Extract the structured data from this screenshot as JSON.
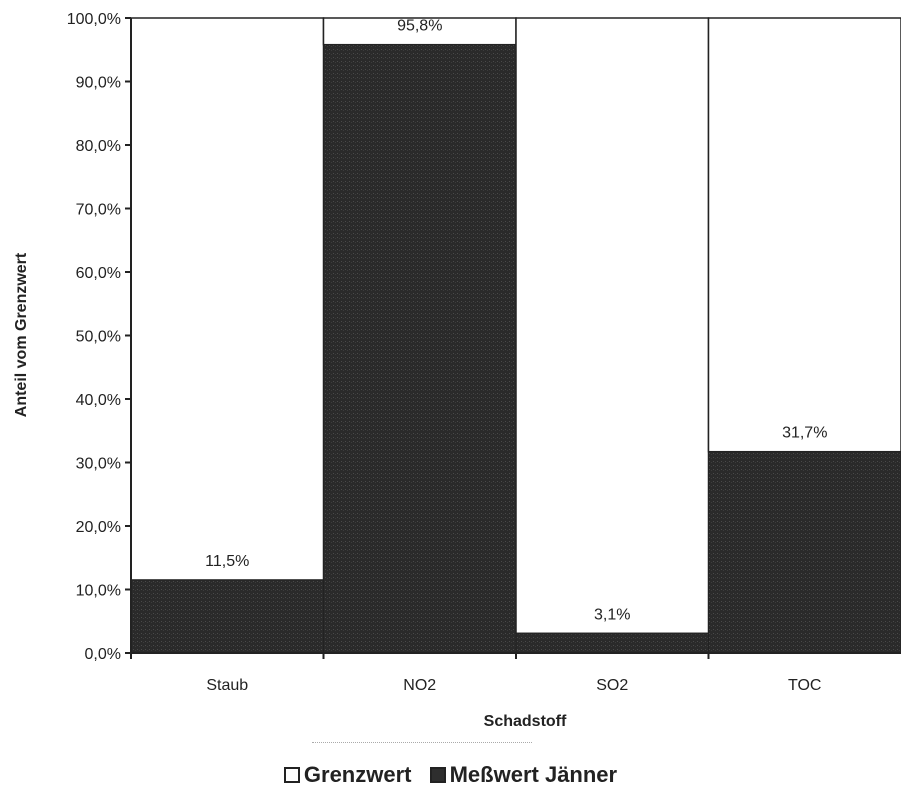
{
  "chart_data": {
    "type": "bar",
    "stacked": true,
    "categories": [
      "Staub",
      "NO2",
      "SO2",
      "TOC"
    ],
    "series": [
      {
        "name": "Meßwert Jänner",
        "color": "#2e2e2e",
        "values": [
          11.5,
          95.8,
          3.1,
          31.7
        ],
        "labels": [
          "11,5%",
          "95,8%",
          "3,1%",
          "31,7%"
        ]
      },
      {
        "name": "Grenzwert",
        "color": "#ffffff",
        "values": [
          88.5,
          4.2,
          96.9,
          68.3
        ]
      }
    ],
    "xlabel": "Schadstoff",
    "ylabel": "Anteil vom Grenzwert",
    "ylim": [
      0,
      100
    ],
    "yticks": [
      0,
      10,
      20,
      30,
      40,
      50,
      60,
      70,
      80,
      90,
      100
    ],
    "ytick_labels": [
      "0,0%",
      "10,0%",
      "20,0%",
      "30,0%",
      "40,0%",
      "50,0%",
      "60,0%",
      "70,0%",
      "80,0%",
      "90,0%",
      "100,0%"
    ],
    "grid": false,
    "legend_position": "bottom"
  },
  "legend": {
    "items": [
      {
        "label": "Grenzwert",
        "color": "#ffffff"
      },
      {
        "label": "Meßwert Jänner",
        "color": "#2e2e2e"
      }
    ]
  }
}
